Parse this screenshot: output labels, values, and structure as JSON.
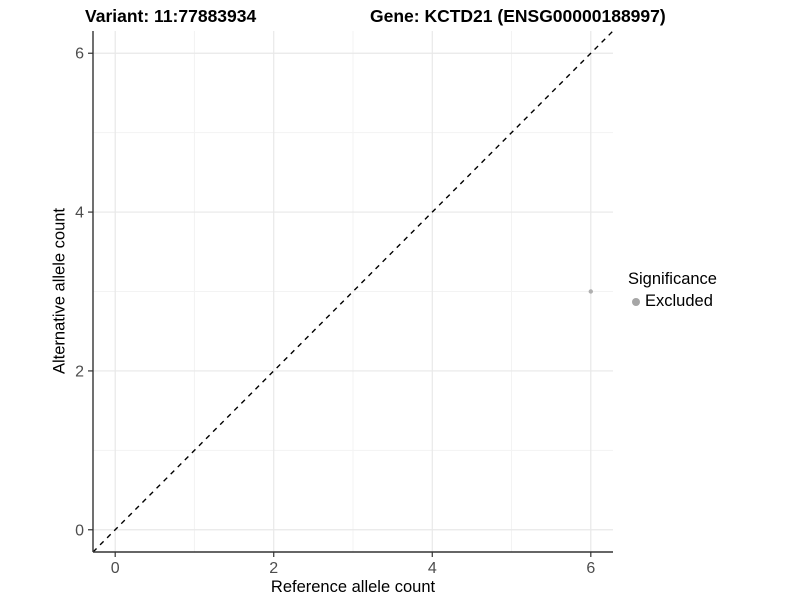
{
  "titles": {
    "left": "Variant: 11:77883934",
    "right": "Gene: KCTD21 (ENSG00000188997)"
  },
  "legend": {
    "title": "Significance",
    "items": [
      {
        "label": "Excluded",
        "color": "#a6a6a6"
      }
    ]
  },
  "colors": {
    "point": "#b0b0b0",
    "legend_point": "#a6a6a6",
    "grid_major": "#e8e8e8",
    "grid_minor": "#f3f3f3",
    "axis_line": "#333333",
    "tick_mark": "#333333",
    "tick_label": "#4d4d4d",
    "identity_line": "#000000",
    "background": "#ffffff"
  },
  "chart_data": {
    "type": "scatter",
    "xlabel": "Reference allele count",
    "ylabel": "Alternative allele count",
    "xlim": [
      -0.28,
      6.28
    ],
    "ylim": [
      -0.28,
      6.28
    ],
    "x_ticks": [
      0,
      2,
      4,
      6
    ],
    "y_ticks": [
      0,
      2,
      4,
      6
    ],
    "x_minor_ticks": [
      1,
      3,
      5
    ],
    "y_minor_ticks": [
      1,
      3,
      5
    ],
    "grid": true,
    "legend_position": "right",
    "reference_line": {
      "kind": "identity",
      "slope": 1,
      "intercept": 0,
      "style": "dashed"
    },
    "series": [
      {
        "name": "Excluded",
        "points": [
          {
            "x": 6,
            "y": 3
          }
        ]
      }
    ]
  }
}
